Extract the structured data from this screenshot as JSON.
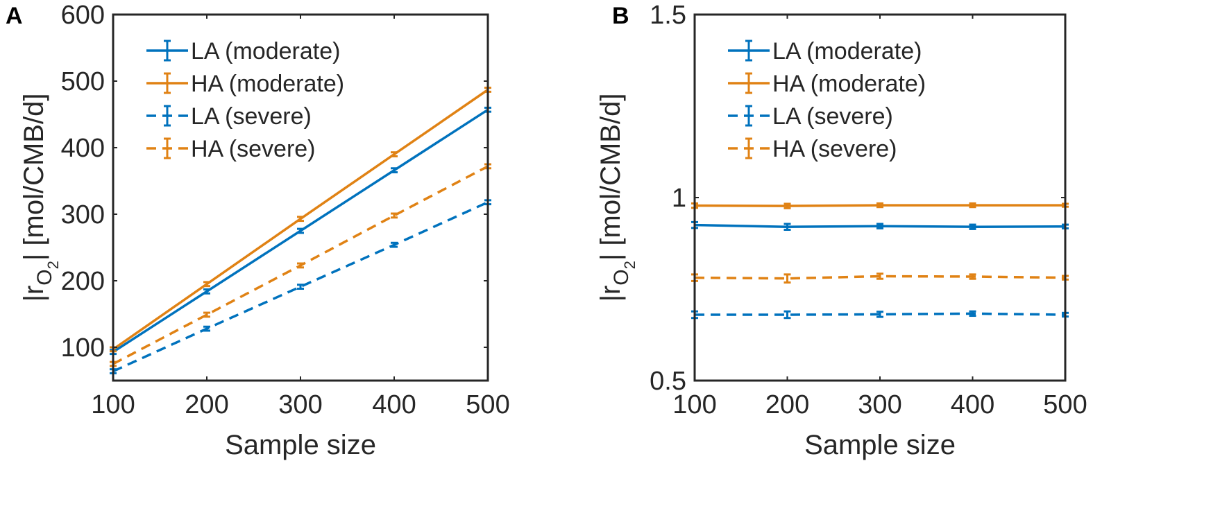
{
  "colors": {
    "LA": "#0072BD",
    "HA": "#D95319",
    "axis": "#262626",
    "background": "#ffffff"
  },
  "chart_data": [
    {
      "panel_label": "A",
      "type": "line",
      "title": "",
      "xlabel": "Sample size",
      "ylabel_main": "|r",
      "ylabel_sub": "O",
      "ylabel_subsub": "2",
      "ylabel_rest": "| [mol/CMB/d]",
      "xlim": [
        100,
        500
      ],
      "ylim": [
        50,
        600
      ],
      "x_ticks": [
        100,
        200,
        300,
        400,
        500
      ],
      "x_tick_labels": [
        "100",
        "200",
        "300",
        "400",
        "500"
      ],
      "y_ticks": [
        100,
        200,
        300,
        400,
        500,
        600
      ],
      "y_tick_labels": [
        "100",
        "200",
        "300",
        "400",
        "500",
        "600"
      ],
      "legend_position": "top-left",
      "x": [
        100,
        200,
        300,
        400,
        500
      ],
      "series": [
        {
          "name": "LA (moderate)",
          "color": "#0072BD",
          "dash": "solid",
          "values": [
            93,
            184,
            275,
            366,
            457
          ],
          "errors": [
            3,
            3,
            3,
            3,
            3
          ]
        },
        {
          "name": "HA (moderate)",
          "color": "#E08214",
          "dash": "solid",
          "values": [
            97,
            195,
            293,
            390,
            487
          ],
          "errors": [
            3,
            3,
            3,
            3,
            3
          ]
        },
        {
          "name": "LA (severe)",
          "color": "#0072BD",
          "dash": "dashed",
          "values": [
            64,
            128,
            191,
            254,
            318
          ],
          "errors": [
            3,
            3,
            3,
            3,
            3
          ]
        },
        {
          "name": "HA (severe)",
          "color": "#E08214",
          "dash": "dashed",
          "values": [
            75,
            149,
            223,
            298,
            372
          ],
          "errors": [
            3,
            3,
            3,
            3,
            3
          ]
        }
      ]
    },
    {
      "panel_label": "B",
      "type": "line",
      "title": "",
      "xlabel": "Sample size",
      "ylabel_main": "|r",
      "ylabel_sub": "O",
      "ylabel_subsub": "2",
      "ylabel_rest": "| [mol/CMB/d]",
      "xlim": [
        100,
        500
      ],
      "ylim": [
        0.5,
        1.5
      ],
      "x_ticks": [
        100,
        200,
        300,
        400,
        500
      ],
      "x_tick_labels": [
        "100",
        "200",
        "300",
        "400",
        "500"
      ],
      "y_ticks": [
        0.5,
        1,
        1.5
      ],
      "y_tick_labels": [
        "0.5",
        "1",
        "1.5"
      ],
      "legend_position": "top-left",
      "x": [
        100,
        200,
        300,
        400,
        500
      ],
      "series": [
        {
          "name": "LA (moderate)",
          "color": "#0072BD",
          "dash": "solid",
          "values": [
            0.925,
            0.92,
            0.922,
            0.92,
            0.921
          ],
          "errors": [
            0.008,
            0.008,
            0.006,
            0.006,
            0.005
          ]
        },
        {
          "name": "HA (moderate)",
          "color": "#E08214",
          "dash": "solid",
          "values": [
            0.978,
            0.977,
            0.979,
            0.979,
            0.979
          ],
          "errors": [
            0.006,
            0.006,
            0.005,
            0.005,
            0.004
          ]
        },
        {
          "name": "LA (severe)",
          "color": "#0072BD",
          "dash": "dashed",
          "values": [
            0.68,
            0.68,
            0.681,
            0.683,
            0.68
          ],
          "errors": [
            0.009,
            0.009,
            0.007,
            0.006,
            0.005
          ]
        },
        {
          "name": "HA (severe)",
          "color": "#E08214",
          "dash": "dashed",
          "values": [
            0.781,
            0.779,
            0.785,
            0.784,
            0.781
          ],
          "errors": [
            0.009,
            0.011,
            0.007,
            0.006,
            0.005
          ]
        }
      ]
    }
  ]
}
